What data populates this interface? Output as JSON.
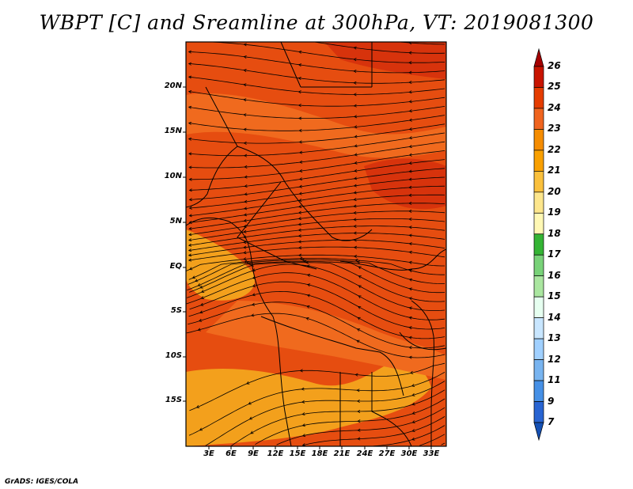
{
  "title": "WBPT [C] and Sreamline at 300hPa, VT: 2019081300",
  "footer": "GrADS: IGES/COLA",
  "lat_labels": [
    "20N",
    "15N",
    "10N",
    "5N",
    "EQ",
    "5S",
    "10S",
    "15S"
  ],
  "lon_labels": [
    "3E",
    "6E",
    "9E",
    "12E",
    "15E",
    "18E",
    "21E",
    "24E",
    "27E",
    "30E",
    "33E"
  ],
  "colorbar": {
    "labels": [
      "26",
      "25",
      "24",
      "23",
      "22",
      "21",
      "20",
      "19",
      "18",
      "17",
      "16",
      "15",
      "14",
      "13",
      "12",
      "11",
      "9",
      "7"
    ],
    "colors": [
      "#a50000",
      "#c81400",
      "#e53c00",
      "#f0641e",
      "#f58c00",
      "#f9a000",
      "#fac03c",
      "#fde68c",
      "#fff8b4",
      "#34b434",
      "#78d278",
      "#aae6a0",
      "#e6fff0",
      "#c8e6ff",
      "#a0d0ff",
      "#78b4f0",
      "#4690e6",
      "#2864d2",
      "#1450b4"
    ]
  },
  "fill_colors": {
    "base": "#e64d10",
    "warm": "#f06a1e",
    "cool": "#f3a01c",
    "hot": "#d7330c"
  },
  "stream_color": "#000000"
}
